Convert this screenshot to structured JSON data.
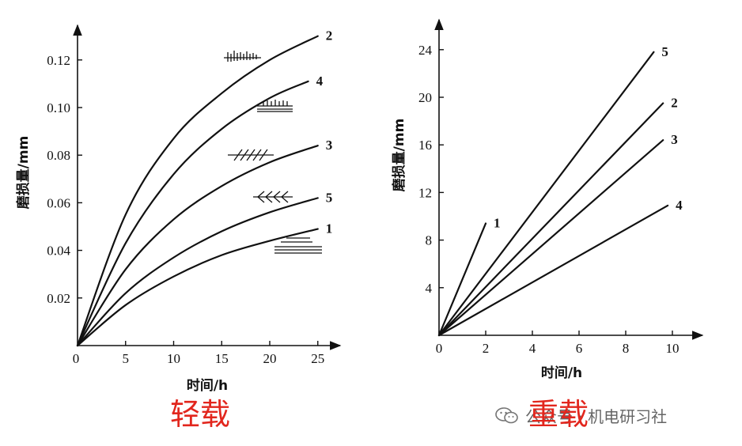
{
  "chart_data": [
    {
      "type": "line",
      "caption": "轻载",
      "xlabel": "时间/h",
      "ylabel": "磨损量/mm",
      "xlim": [
        0,
        26
      ],
      "ylim": [
        0,
        0.135
      ],
      "xticks": [
        "0",
        "5",
        "10",
        "15",
        "20",
        "25"
      ],
      "yticks": [
        "0.02",
        "0.04",
        "0.06",
        "0.08",
        "0.10",
        "0.12"
      ],
      "series": [
        {
          "name": "1",
          "x": [
            0,
            5,
            10,
            15,
            20,
            25
          ],
          "y": [
            0,
            0.017,
            0.029,
            0.038,
            0.044,
            0.049
          ]
        },
        {
          "name": "5",
          "x": [
            0,
            5,
            10,
            15,
            20,
            25
          ],
          "y": [
            0,
            0.022,
            0.037,
            0.048,
            0.056,
            0.062
          ]
        },
        {
          "name": "3",
          "x": [
            0,
            5,
            10,
            15,
            20,
            25
          ],
          "y": [
            0,
            0.032,
            0.053,
            0.067,
            0.077,
            0.084
          ]
        },
        {
          "name": "4",
          "x": [
            0,
            5,
            10,
            15,
            20,
            24
          ],
          "y": [
            0,
            0.043,
            0.072,
            0.091,
            0.104,
            0.111
          ]
        },
        {
          "name": "2",
          "x": [
            0,
            5,
            10,
            15,
            20,
            25
          ],
          "y": [
            0,
            0.055,
            0.087,
            0.106,
            0.12,
            0.13
          ]
        }
      ]
    },
    {
      "type": "line",
      "caption": "重载",
      "xlabel": "时间/h",
      "ylabel": "磨损量/mm",
      "xlim": [
        0,
        11
      ],
      "ylim": [
        0,
        26
      ],
      "xticks": [
        "0",
        "2",
        "4",
        "6",
        "8",
        "10"
      ],
      "yticks": [
        "4",
        "8",
        "12",
        "16",
        "20",
        "24"
      ],
      "series": [
        {
          "name": "1",
          "x": [
            0,
            2
          ],
          "y": [
            0,
            9.4
          ]
        },
        {
          "name": "5",
          "x": [
            0,
            9.2
          ],
          "y": [
            0,
            23.8
          ]
        },
        {
          "name": "2",
          "x": [
            0,
            9.6
          ],
          "y": [
            0,
            19.5
          ]
        },
        {
          "name": "3",
          "x": [
            0,
            9.6
          ],
          "y": [
            0,
            16.4
          ]
        },
        {
          "name": "4",
          "x": [
            0,
            9.8
          ],
          "y": [
            0,
            10.9
          ]
        }
      ]
    }
  ],
  "watermark": "公众号 · 机电研习社"
}
